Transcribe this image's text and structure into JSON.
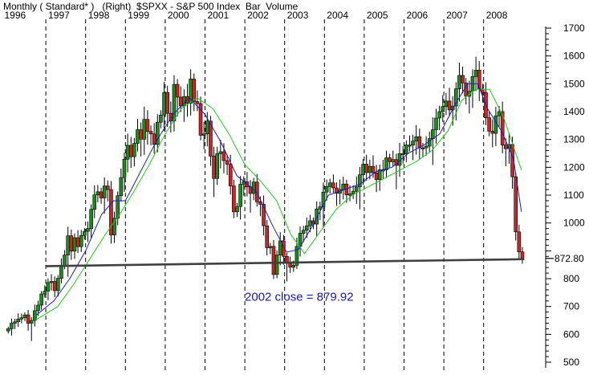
{
  "header": {
    "text": "Monthly ( Standard* )   (Right)  $SPXX - S&P 500 Index  Bar  Volume"
  },
  "chart_data": {
    "type": "candlestick",
    "ylim": [
      480,
      1720
    ],
    "yticks": [
      500,
      600,
      700,
      800,
      900,
      1000,
      1100,
      1200,
      1300,
      1400,
      1500,
      1600,
      1700
    ],
    "years": [
      1996,
      1997,
      1998,
      1999,
      2000,
      2001,
      2002,
      2003,
      2004,
      2005,
      2006,
      2007,
      2008
    ],
    "last_value_label": "872.80",
    "last_value": 872.8,
    "support_line": {
      "start": [
        1997.0,
        845
      ],
      "end": [
        2008.9,
        870
      ]
    },
    "annotation": {
      "text": "2002 close = 879.92",
      "at": [
        2002.2,
        735
      ]
    },
    "colors": {
      "up": "#1a8c1a",
      "down": "#d42020",
      "ma_short": "#1a1acc",
      "ma_long": "#22cc22",
      "support": "#404040"
    },
    "closes": [
      620,
      640,
      645,
      655,
      660,
      670,
      640,
      650,
      685,
      705,
      745,
      755,
      786,
      790,
      757,
      801,
      848,
      885,
      954,
      899,
      947,
      915,
      955,
      970,
      980,
      1049,
      1101,
      1112,
      1090,
      1133,
      1120,
      957,
      1017,
      1098,
      1163,
      1229,
      1279,
      1238,
      1286,
      1335,
      1301,
      1372,
      1329,
      1320,
      1282,
      1362,
      1388,
      1469,
      1394,
      1366,
      1498,
      1452,
      1420,
      1454,
      1430,
      1517,
      1436,
      1429,
      1315,
      1320,
      1366,
      1240,
      1160,
      1249,
      1256,
      1224,
      1211,
      1133,
      1040,
      1059,
      1139,
      1148,
      1130,
      1106,
      1147,
      1076,
      1067,
      990,
      911,
      916,
      815,
      885,
      936,
      880,
      855,
      841,
      848,
      916,
      963,
      974,
      990,
      1008,
      996,
      1050,
      1058,
      1111,
      1131,
      1144,
      1126,
      1107,
      1120,
      1140,
      1101,
      1104,
      1114,
      1130,
      1173,
      1211,
      1181,
      1203,
      1180,
      1156,
      1191,
      1191,
      1234,
      1220,
      1228,
      1207,
      1249,
      1248,
      1280,
      1280,
      1294,
      1310,
      1270,
      1270,
      1276,
      1303,
      1335,
      1377,
      1400,
      1418,
      1438,
      1406,
      1420,
      1482,
      1530,
      1503,
      1455,
      1473,
      1526,
      1549,
      1481,
      1468,
      1378,
      1330,
      1322,
      1385,
      1400,
      1280,
      1267,
      1282,
      1166,
      968,
      896,
      873
    ],
    "ma_short": [
      [
        1996.75,
        668
      ],
      [
        1997.2,
        720
      ],
      [
        1997.6,
        800
      ],
      [
        1998.0,
        900
      ],
      [
        1998.4,
        1030
      ],
      [
        1998.7,
        1080
      ],
      [
        1999.0,
        1080
      ],
      [
        1999.4,
        1190
      ],
      [
        1999.8,
        1300
      ],
      [
        2000.2,
        1390
      ],
      [
        2000.6,
        1450
      ],
      [
        2001.0,
        1390
      ],
      [
        2001.4,
        1290
      ],
      [
        2001.8,
        1170
      ],
      [
        2002.3,
        1110
      ],
      [
        2002.7,
        990
      ],
      [
        2003.05,
        895
      ],
      [
        2003.35,
        905
      ],
      [
        2003.7,
        990
      ],
      [
        2004.1,
        1100
      ],
      [
        2004.5,
        1120
      ],
      [
        2004.9,
        1140
      ],
      [
        2005.3,
        1185
      ],
      [
        2005.7,
        1200
      ],
      [
        2006.1,
        1250
      ],
      [
        2006.5,
        1280
      ],
      [
        2006.9,
        1320
      ],
      [
        2007.3,
        1430
      ],
      [
        2007.6,
        1500
      ],
      [
        2007.85,
        1500
      ],
      [
        2008.1,
        1410
      ],
      [
        2008.45,
        1330
      ],
      [
        2008.75,
        1230
      ],
      [
        2008.95,
        1040
      ]
    ],
    "ma_long": [
      [
        1996.75,
        652
      ],
      [
        1997.3,
        700
      ],
      [
        1997.7,
        780
      ],
      [
        1998.1,
        870
      ],
      [
        1998.5,
        960
      ],
      [
        1998.85,
        1030
      ],
      [
        1999.2,
        1110
      ],
      [
        1999.6,
        1210
      ],
      [
        2000.0,
        1320
      ],
      [
        2000.4,
        1410
      ],
      [
        2000.8,
        1450
      ],
      [
        2001.2,
        1410
      ],
      [
        2001.6,
        1320
      ],
      [
        2002.0,
        1210
      ],
      [
        2002.4,
        1150
      ],
      [
        2002.8,
        1080
      ],
      [
        2003.15,
        960
      ],
      [
        2003.5,
        890
      ],
      [
        2003.9,
        970
      ],
      [
        2004.3,
        1050
      ],
      [
        2004.7,
        1100
      ],
      [
        2005.1,
        1130
      ],
      [
        2005.5,
        1160
      ],
      [
        2005.9,
        1190
      ],
      [
        2006.3,
        1220
      ],
      [
        2006.7,
        1260
      ],
      [
        2007.1,
        1330
      ],
      [
        2007.45,
        1440
      ],
      [
        2007.8,
        1480
      ],
      [
        2008.15,
        1480
      ],
      [
        2008.5,
        1380
      ],
      [
        2008.95,
        1190
      ]
    ]
  }
}
